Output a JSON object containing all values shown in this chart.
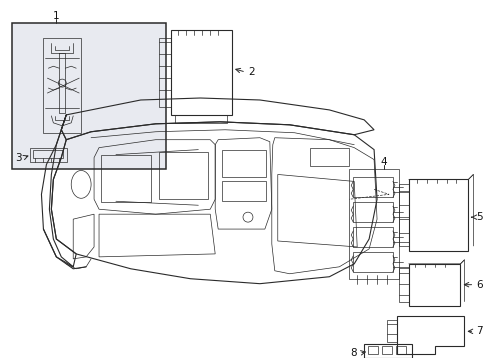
{
  "background_color": "#ffffff",
  "line_color": "#2a2a2a",
  "inset_bg": "#e8eaf0",
  "label_color": "#111111",
  "figsize": [
    4.89,
    3.6
  ],
  "dpi": 100,
  "lw_main": 0.8,
  "lw_thin": 0.5,
  "lw_thick": 1.1,
  "label_fontsize": 7.5
}
